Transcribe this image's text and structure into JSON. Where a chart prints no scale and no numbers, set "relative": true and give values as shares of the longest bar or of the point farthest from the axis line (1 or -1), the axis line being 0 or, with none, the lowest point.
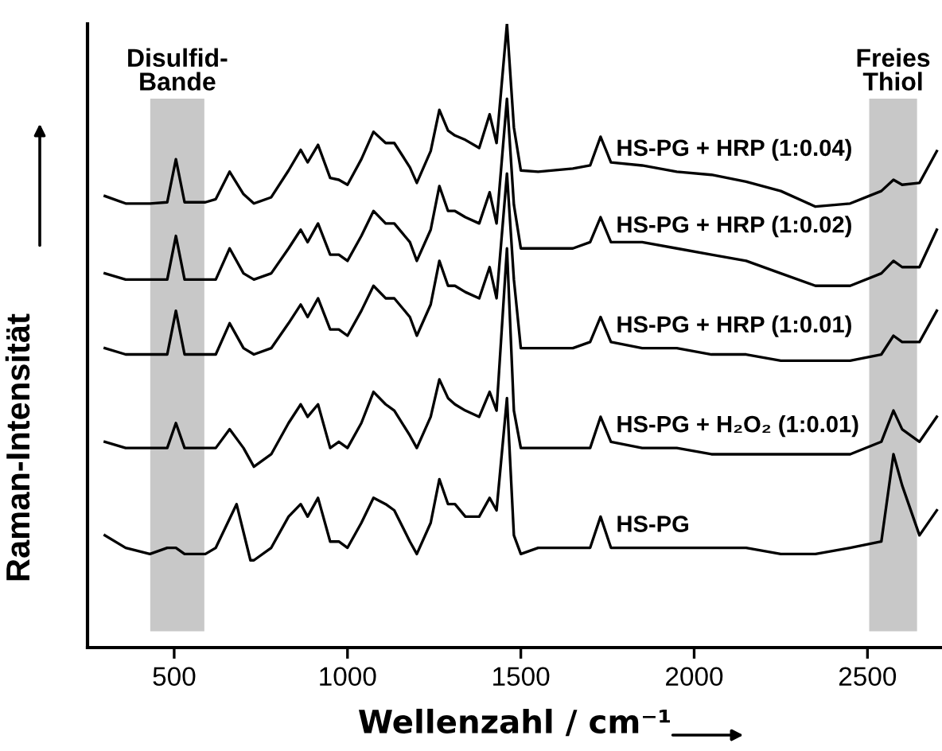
{
  "chart_data": {
    "type": "line",
    "relative": true,
    "xlabel": "Wellenzahl / cm⁻¹",
    "ylabel": "Raman-Intensität",
    "xlim": [
      250,
      2715
    ],
    "xticks": [
      500,
      1000,
      1500,
      2000,
      2500
    ],
    "grid": false,
    "legend": false,
    "marker": "none",
    "line_style": "solid",
    "x": [
      300,
      360,
      430,
      480,
      505,
      530,
      590,
      620,
      660,
      700,
      730,
      780,
      830,
      865,
      885,
      915,
      950,
      975,
      1000,
      1040,
      1075,
      1110,
      1135,
      1180,
      1200,
      1240,
      1265,
      1290,
      1310,
      1340,
      1380,
      1410,
      1430,
      1460,
      1480,
      1500,
      1550,
      1650,
      1700,
      1730,
      1760,
      1850,
      1950,
      2050,
      2150,
      2250,
      2350,
      2450,
      2540,
      2575,
      2600,
      2650,
      2700
    ],
    "bands": [
      {
        "axis": "x",
        "from": 431,
        "to": 587,
        "label": "Disulfid-\nBande",
        "color": "#c8c8c8"
      },
      {
        "axis": "x",
        "from": 2505,
        "to": 2643,
        "label": "Freies\nThiol",
        "color": "#c8c8c8"
      }
    ],
    "series": [
      {
        "name": "HS-PG + HRP (1:0.04)",
        "color": "#000000",
        "values": [
          0.724,
          0.712,
          0.712,
          0.714,
          0.783,
          0.714,
          0.714,
          0.719,
          0.763,
          0.727,
          0.712,
          0.722,
          0.765,
          0.798,
          0.778,
          0.806,
          0.753,
          0.75,
          0.742,
          0.783,
          0.827,
          0.809,
          0.809,
          0.77,
          0.745,
          0.796,
          0.862,
          0.829,
          0.821,
          0.814,
          0.801,
          0.855,
          0.809,
          1.0,
          0.834,
          0.765,
          0.763,
          0.768,
          0.773,
          0.819,
          0.778,
          0.773,
          0.763,
          0.758,
          0.747,
          0.732,
          0.707,
          0.712,
          0.732,
          0.75,
          0.742,
          0.745,
          0.796
        ]
      },
      {
        "name": "HS-PG + HRP (1:0.02)",
        "color": "#000000",
        "values": [
          0.6,
          0.59,
          0.59,
          0.59,
          0.66,
          0.59,
          0.59,
          0.59,
          0.64,
          0.6,
          0.59,
          0.6,
          0.64,
          0.67,
          0.65,
          0.68,
          0.63,
          0.63,
          0.62,
          0.66,
          0.7,
          0.68,
          0.68,
          0.65,
          0.62,
          0.67,
          0.74,
          0.7,
          0.7,
          0.69,
          0.68,
          0.73,
          0.68,
          0.88,
          0.71,
          0.64,
          0.64,
          0.64,
          0.65,
          0.69,
          0.65,
          0.65,
          0.64,
          0.63,
          0.62,
          0.6,
          0.58,
          0.58,
          0.6,
          0.62,
          0.61,
          0.61,
          0.67
        ]
      },
      {
        "name": "HS-PG + HRP (1:0.01)",
        "color": "#000000",
        "values": [
          0.48,
          0.47,
          0.47,
          0.47,
          0.54,
          0.47,
          0.47,
          0.47,
          0.52,
          0.48,
          0.47,
          0.48,
          0.52,
          0.55,
          0.53,
          0.56,
          0.51,
          0.51,
          0.5,
          0.54,
          0.58,
          0.56,
          0.56,
          0.53,
          0.5,
          0.55,
          0.62,
          0.58,
          0.58,
          0.57,
          0.56,
          0.61,
          0.56,
          0.76,
          0.59,
          0.48,
          0.48,
          0.48,
          0.49,
          0.53,
          0.49,
          0.48,
          0.48,
          0.47,
          0.47,
          0.46,
          0.46,
          0.46,
          0.47,
          0.5,
          0.49,
          0.49,
          0.54
        ]
      },
      {
        "name": "HS-PG + H₂O₂ (1:0.01)",
        "color": "#000000",
        "values": [
          0.33,
          0.32,
          0.32,
          0.32,
          0.36,
          0.32,
          0.32,
          0.32,
          0.35,
          0.32,
          0.29,
          0.31,
          0.36,
          0.39,
          0.37,
          0.39,
          0.32,
          0.33,
          0.32,
          0.36,
          0.41,
          0.39,
          0.38,
          0.34,
          0.32,
          0.37,
          0.43,
          0.4,
          0.39,
          0.38,
          0.37,
          0.41,
          0.38,
          0.64,
          0.38,
          0.32,
          0.32,
          0.32,
          0.32,
          0.37,
          0.33,
          0.32,
          0.32,
          0.31,
          0.31,
          0.31,
          0.31,
          0.31,
          0.33,
          0.38,
          0.35,
          0.33,
          0.37
        ]
      },
      {
        "name": "HS-PG",
        "color": "#000000",
        "x": [
          300,
          360,
          430,
          480,
          505,
          530,
          590,
          620,
          680,
          720,
          730,
          780,
          830,
          865,
          885,
          915,
          950,
          975,
          1000,
          1040,
          1075,
          1110,
          1135,
          1180,
          1200,
          1240,
          1265,
          1290,
          1310,
          1340,
          1380,
          1410,
          1430,
          1460,
          1480,
          1500,
          1550,
          1650,
          1700,
          1730,
          1760,
          1850,
          1950,
          2050,
          2150,
          2250,
          2350,
          2450,
          2540,
          2575,
          2600,
          2650,
          2700
        ],
        "values": [
          0.18,
          0.16,
          0.15,
          0.16,
          0.16,
          0.15,
          0.15,
          0.16,
          0.23,
          0.14,
          0.14,
          0.16,
          0.21,
          0.23,
          0.21,
          0.24,
          0.17,
          0.17,
          0.16,
          0.2,
          0.24,
          0.23,
          0.22,
          0.17,
          0.15,
          0.2,
          0.27,
          0.23,
          0.23,
          0.21,
          0.21,
          0.24,
          0.22,
          0.4,
          0.18,
          0.15,
          0.16,
          0.16,
          0.16,
          0.21,
          0.16,
          0.16,
          0.16,
          0.16,
          0.16,
          0.15,
          0.15,
          0.16,
          0.17,
          0.31,
          0.26,
          0.18,
          0.22
        ]
      }
    ]
  }
}
